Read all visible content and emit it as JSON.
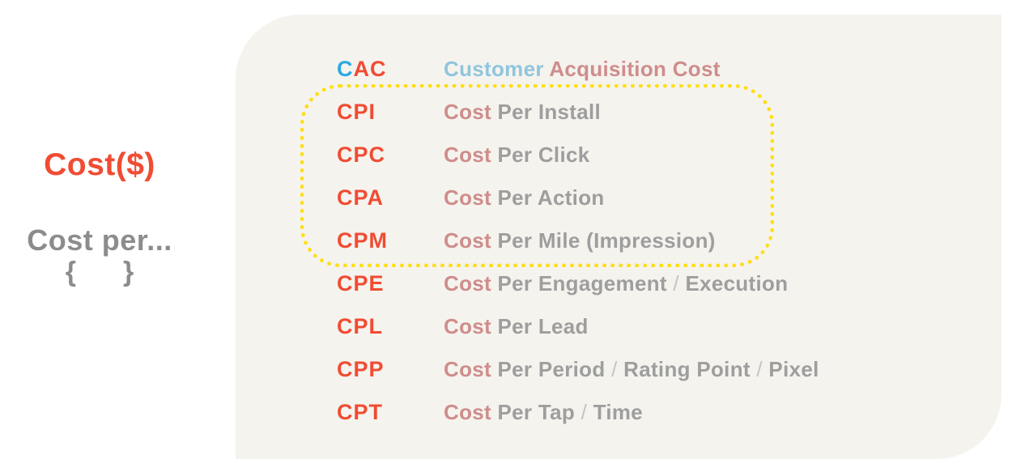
{
  "colors": {
    "page_background": "#FFFFFF",
    "panel_background": "#F5F3EE",
    "accent_red": "#F04C33",
    "accent_blue": "#29ABE2",
    "light_blue": "#8FC6DD",
    "rose": "#CE8D8B",
    "definition_gray": "#9E9E9E",
    "slash_gray": "#C4C4C4",
    "left_text_gray": "#8C8C8C",
    "highlight_yellow": "#FFDE17"
  },
  "left_column": {
    "title": "Cost($)",
    "subtitle": "Cost per...",
    "brace_open": "{",
    "brace_close": "}"
  },
  "glossary": {
    "rows": [
      {
        "acronym": "CAC",
        "acronym_parts": [
          {
            "text": "C",
            "style": "blue"
          },
          {
            "text": "AC",
            "style": "red"
          }
        ],
        "definition": "Customer Acquisition Cost",
        "definition_parts": [
          {
            "text": "Customer ",
            "style": "lightblue"
          },
          {
            "text": "Acquisition Cost",
            "style": "rose"
          }
        ],
        "highlighted": false
      },
      {
        "acronym": "CPI",
        "acronym_parts": [
          {
            "text": "CPI",
            "style": "red"
          }
        ],
        "definition": "Cost Per Install",
        "definition_parts": [
          {
            "text": "Cost ",
            "style": "rose"
          },
          {
            "text": "Per Install",
            "style": "gray"
          }
        ],
        "highlighted": true
      },
      {
        "acronym": "CPC",
        "acronym_parts": [
          {
            "text": "CPC",
            "style": "red"
          }
        ],
        "definition": "Cost Per Click",
        "definition_parts": [
          {
            "text": "Cost ",
            "style": "rose"
          },
          {
            "text": "Per Click",
            "style": "gray"
          }
        ],
        "highlighted": true
      },
      {
        "acronym": "CPA",
        "acronym_parts": [
          {
            "text": "CPA",
            "style": "red"
          }
        ],
        "definition": "Cost Per Action",
        "definition_parts": [
          {
            "text": "Cost ",
            "style": "rose"
          },
          {
            "text": "Per Action",
            "style": "gray"
          }
        ],
        "highlighted": true
      },
      {
        "acronym": "CPM",
        "acronym_parts": [
          {
            "text": "CPM",
            "style": "red"
          }
        ],
        "definition": "Cost Per Mile (Impression)",
        "definition_parts": [
          {
            "text": "Cost ",
            "style": "rose"
          },
          {
            "text": "Per Mile (Impression)",
            "style": "gray"
          }
        ],
        "highlighted": true
      },
      {
        "acronym": "CPE",
        "acronym_parts": [
          {
            "text": "CPE",
            "style": "red"
          }
        ],
        "definition": "Cost Per Engagement / Execution",
        "definition_parts": [
          {
            "text": "Cost ",
            "style": "rose"
          },
          {
            "text": "Per Engagement",
            "style": "gray"
          },
          {
            "text": " / ",
            "style": "slash"
          },
          {
            "text": "Execution",
            "style": "gray"
          }
        ],
        "highlighted": false
      },
      {
        "acronym": "CPL",
        "acronym_parts": [
          {
            "text": "CPL",
            "style": "red"
          }
        ],
        "definition": "Cost Per Lead",
        "definition_parts": [
          {
            "text": "Cost ",
            "style": "rose"
          },
          {
            "text": "Per Lead",
            "style": "gray"
          }
        ],
        "highlighted": false
      },
      {
        "acronym": "CPP",
        "acronym_parts": [
          {
            "text": "CPP",
            "style": "red"
          }
        ],
        "definition": "Cost Per Period / Rating Point / Pixel",
        "definition_parts": [
          {
            "text": "Cost ",
            "style": "rose"
          },
          {
            "text": "Per Period",
            "style": "gray"
          },
          {
            "text": " / ",
            "style": "slash"
          },
          {
            "text": "Rating Point",
            "style": "gray"
          },
          {
            "text": " / ",
            "style": "slash"
          },
          {
            "text": "Pixel",
            "style": "gray"
          }
        ],
        "highlighted": false
      },
      {
        "acronym": "CPT",
        "acronym_parts": [
          {
            "text": "CPT",
            "style": "red"
          }
        ],
        "definition": "Cost Per Tap / Time",
        "definition_parts": [
          {
            "text": "Cost ",
            "style": "rose"
          },
          {
            "text": "Per Tap",
            "style": "gray"
          },
          {
            "text": " / ",
            "style": "slash"
          },
          {
            "text": "Time",
            "style": "gray"
          }
        ],
        "highlighted": false
      }
    ]
  }
}
